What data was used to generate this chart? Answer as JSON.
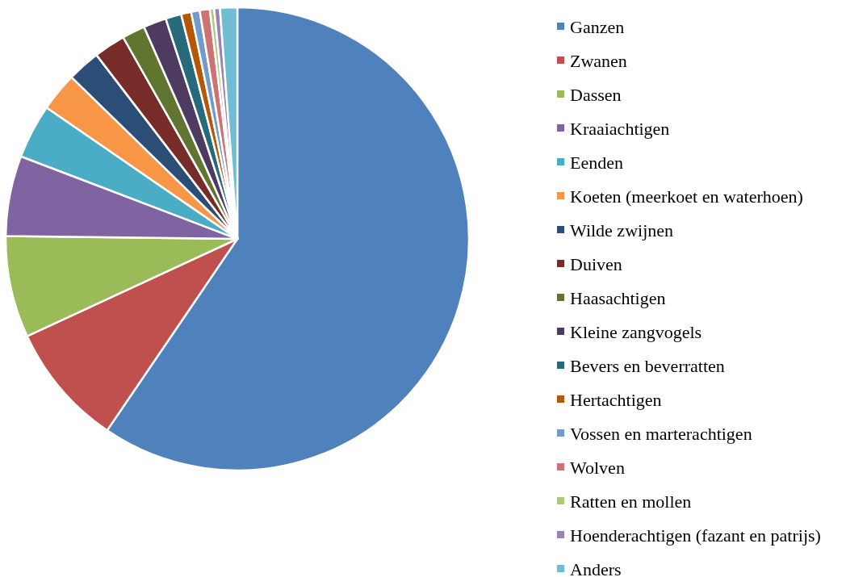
{
  "chart_data": {
    "type": "pie",
    "legend": "right",
    "categories": [
      "Ganzen",
      "Zwanen",
      "Dassen",
      "Kraaiachtigen",
      "Eenden",
      "Koeten (meerkoet en waterhoen)",
      "Wilde zwijnen",
      "Duiven",
      "Haasachtigen",
      "Kleine zangvogels",
      "Bevers en beverratten",
      "Hertachtigen",
      "Vossen en marterachtigen",
      "Wolven",
      "Ratten en mollen",
      "Hoenderachtigen (fazant en patrijs)",
      "Anders"
    ],
    "values": [
      59.5,
      8.6,
      7.1,
      5.6,
      3.8,
      2.7,
      2.3,
      2.2,
      1.6,
      1.6,
      1.1,
      0.7,
      0.6,
      0.7,
      0.3,
      0.4,
      1.2
    ],
    "colors": [
      "#4f81bd",
      "#c0504d",
      "#9bbb59",
      "#8064a2",
      "#4bacc6",
      "#f79646",
      "#2c4d75",
      "#772c2a",
      "#5f7530",
      "#4d3b62",
      "#276a7c",
      "#b65708",
      "#729aca",
      "#cd7371",
      "#afc97a",
      "#9983b5",
      "#6fbdd1"
    ]
  }
}
